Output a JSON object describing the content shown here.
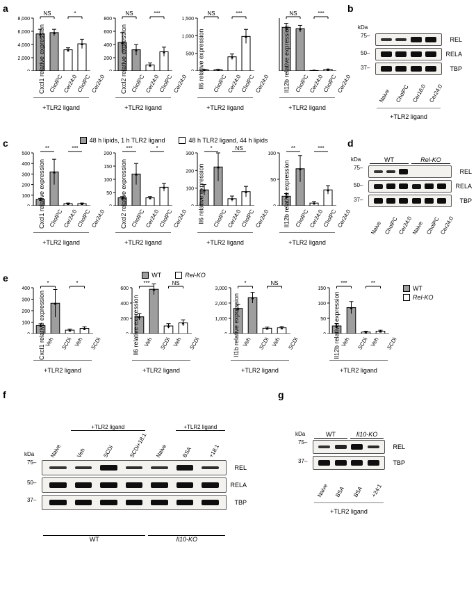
{
  "colors": {
    "bar_fill_gray": "#9e9e9e",
    "bar_fill_white": "#ffffff",
    "bar_stroke": "#000000",
    "axis": "#000000",
    "blot_bg": "#f2efe9",
    "band_dark": "#2a2a2a",
    "band_med": "#555555",
    "band_light": "#999999"
  },
  "panel_a": {
    "legend": [
      "48 h lipids, 1 h TLR2 ligand",
      "48 h TLR2 ligand, 44 h lipids"
    ],
    "xcats": [
      "CholPC",
      "Cer24:0",
      "CholPC",
      "Cer24:0"
    ],
    "xbracket": "+TLR2 ligand",
    "charts": [
      {
        "title": "Cxcl1",
        "ylabel": "Cxcl1 relative expression",
        "ymax": 8000,
        "ticks": [
          0,
          2000,
          4000,
          6000,
          8000
        ],
        "vals": [
          5600,
          5800,
          3200,
          4100
        ],
        "err": [
          700,
          500,
          300,
          700
        ],
        "sig": [
          "NS",
          "*"
        ]
      },
      {
        "title": "Cxcl2",
        "ylabel": "Cxcl2 relative expression",
        "ymax": 800,
        "ticks": [
          0,
          200,
          400,
          600,
          800
        ],
        "vals": [
          430,
          320,
          90,
          290
        ],
        "err": [
          150,
          80,
          30,
          70
        ],
        "sig": [
          "NS",
          "***"
        ]
      },
      {
        "title": "Il6",
        "ylabel": "Il6 relative expression",
        "ymax": 1500,
        "ticks": [
          0,
          500,
          1000,
          1500
        ],
        "vals": [
          30,
          30,
          400,
          980
        ],
        "err": [
          10,
          10,
          80,
          200
        ],
        "sig": [
          "NS",
          "***"
        ]
      },
      {
        "title": "Il12b",
        "ylabel": "Il12b relative expression",
        "ymax": 8000,
        "ticks_upper": [
          6000,
          8000
        ],
        "ticks_lower": [
          0,
          200,
          400
        ],
        "break": true,
        "vals": [
          6600,
          6400,
          60,
          230
        ],
        "err": [
          600,
          500,
          20,
          40
        ],
        "sig": [
          "NS",
          "***"
        ]
      }
    ]
  },
  "panel_b": {
    "kda": [
      "75",
      "50",
      "37"
    ],
    "targets": [
      "REL",
      "RELA",
      "TBP"
    ],
    "lanes": [
      "Naive",
      "CholPC",
      "Cer16:0",
      "Cer24:0"
    ],
    "xbracket": "+TLR2 ligand",
    "band_intensity": [
      [
        0.2,
        0.3,
        0.85,
        0.9
      ],
      [
        0.9,
        0.9,
        0.95,
        0.95
      ],
      [
        0.95,
        0.95,
        0.95,
        0.95
      ]
    ]
  },
  "panel_c": {
    "legend": [
      "WT",
      "Rel-KO"
    ],
    "xcats": [
      "CholPC",
      "Cer24:0",
      "CholPC",
      "Cer24:0"
    ],
    "xbracket": "+TLR2 ligand",
    "charts": [
      {
        "title": "Cxcl1",
        "ylabel": "Cxcl1 relative expression",
        "ymax": 500,
        "ticks": [
          0,
          100,
          200,
          300,
          400,
          500
        ],
        "vals": [
          60,
          320,
          20,
          20
        ],
        "err": [
          10,
          120,
          5,
          5
        ],
        "sig": [
          "**",
          "**",
          "**",
          "***"
        ]
      },
      {
        "title": "Cxcl2",
        "ylabel": "Cxcl2 relative expression",
        "ymax": 200,
        "ticks": [
          0,
          50,
          100,
          150,
          200
        ],
        "vals": [
          30,
          120,
          30,
          70
        ],
        "err": [
          5,
          40,
          5,
          15
        ],
        "sig": [
          "***",
          "*",
          "*"
        ]
      },
      {
        "title": "Il6",
        "ylabel": "Il6 relative expression",
        "ymax": 300,
        "ticks": [
          0,
          100,
          200,
          300
        ],
        "vals": [
          90,
          220,
          40,
          80
        ],
        "err": [
          30,
          80,
          15,
          30
        ],
        "sig": [
          "*",
          "*",
          "NS"
        ]
      },
      {
        "title": "Il12b",
        "ylabel": "Il12b relative expression",
        "ymax": 100,
        "ticks": [
          0,
          50,
          100
        ],
        "vals": [
          18,
          70,
          5,
          30
        ],
        "err": [
          5,
          25,
          3,
          8
        ],
        "sig": [
          "**",
          "**",
          "***"
        ]
      }
    ]
  },
  "panel_d": {
    "kda": [
      "75",
      "50",
      "37"
    ],
    "targets": [
      "REL",
      "RELA",
      "TBP"
    ],
    "groups": [
      "WT",
      "Rel-KO"
    ],
    "lanes": [
      "Naive",
      "CholPC",
      "Cer24:0",
      "Naive",
      "CholPC",
      "Cer24:0"
    ],
    "band_intensity": [
      [
        0.15,
        0.35,
        0.9,
        0,
        0,
        0
      ],
      [
        0.8,
        0.95,
        0.95,
        0.8,
        0.95,
        0.95
      ],
      [
        0.95,
        0.95,
        0.95,
        0.95,
        0.95,
        0.95
      ]
    ]
  },
  "panel_e": {
    "legend": [
      "WT",
      "Rel-KO"
    ],
    "xcats": [
      "Veh",
      "SCDi",
      "Veh",
      "SCDi"
    ],
    "xbracket": "+TLR2 ligand",
    "charts": [
      {
        "title": "Cxcl1",
        "ylabel": "Cxcl1 relative\nexpression",
        "ymax": 400,
        "ticks": [
          0,
          100,
          200,
          300,
          400
        ],
        "vals": [
          70,
          265,
          30,
          45
        ],
        "err": [
          15,
          120,
          10,
          15
        ],
        "sig": [
          "*",
          "*"
        ]
      },
      {
        "title": "Il6",
        "ylabel": "Il6 relative\nexpression",
        "ymax": 600,
        "ticks": [
          0,
          200,
          400,
          600
        ],
        "vals": [
          220,
          580,
          100,
          140
        ],
        "err": [
          40,
          70,
          30,
          40
        ],
        "sig": [
          "***",
          "NS"
        ]
      },
      {
        "title": "Il1b",
        "ylabel": "Il1b relative\nexpression",
        "ymax": 3000,
        "ticks": [
          0,
          1000,
          2000,
          3000
        ],
        "vals": [
          1650,
          2350,
          350,
          380
        ],
        "err": [
          250,
          350,
          80,
          80
        ],
        "sig": [
          "*",
          "NS"
        ]
      },
      {
        "title": "Il12b",
        "ylabel": "Il12b relative\nexpression",
        "ymax": 150,
        "ticks": [
          0,
          50,
          100,
          150
        ],
        "vals": [
          25,
          85,
          5,
          8
        ],
        "err": [
          8,
          20,
          3,
          3
        ],
        "sig": [
          "***",
          "**"
        ]
      }
    ]
  },
  "panel_f": {
    "kda": [
      "75",
      "50",
      "37"
    ],
    "targets": [
      "REL",
      "RELA",
      "TBP"
    ],
    "lanes": [
      "Naive",
      "Veh",
      "SCDi",
      "SCDi+18:1",
      "Naive",
      "BSA",
      "+18:1"
    ],
    "brackets_top": [
      "+TLR2 ligand",
      "+TLR2 ligand"
    ],
    "brackets_bottom": [
      "WT",
      "Il10-KO"
    ],
    "band_intensity": [
      [
        0.15,
        0.25,
        0.9,
        0.3,
        0.2,
        0.85,
        0.3
      ],
      [
        0.9,
        0.9,
        0.95,
        0.9,
        0.9,
        0.95,
        0.9
      ],
      [
        0.95,
        0.95,
        0.95,
        0.95,
        0.95,
        0.95,
        0.95
      ]
    ]
  },
  "panel_g": {
    "kda": [
      "75",
      "37"
    ],
    "targets": [
      "REL",
      "TBP"
    ],
    "groups": [
      "WT",
      "Il10-KO"
    ],
    "lanes": [
      "Naive",
      "BSA",
      "BSA",
      "+24:1"
    ],
    "xbracket": "+TLR2 ligand",
    "band_intensity": [
      [
        0.2,
        0.5,
        0.95,
        0.35
      ],
      [
        0.9,
        0.9,
        0.9,
        0.9
      ]
    ]
  }
}
